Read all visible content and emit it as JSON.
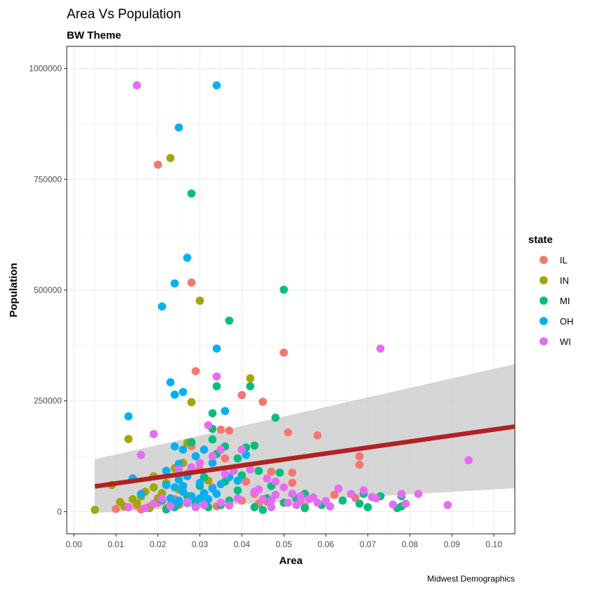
{
  "chart_data": {
    "type": "scatter",
    "title": "Area Vs Population",
    "subtitle": "BW Theme",
    "caption": "Midwest Demographics",
    "xlabel": "Area",
    "ylabel": "Population",
    "xlim": [
      -0.0017,
      0.105
    ],
    "ylim": [
      -50000,
      1050000
    ],
    "x_ticks": [
      0.0,
      0.01,
      0.02,
      0.03,
      0.04,
      0.05,
      0.06,
      0.07,
      0.08,
      0.09,
      0.1
    ],
    "x_tick_labels": [
      "0.00",
      "0.01",
      "0.02",
      "0.03",
      "0.04",
      "0.05",
      "0.06",
      "0.07",
      "0.08",
      "0.09",
      "0.10"
    ],
    "y_ticks": [
      0,
      250000,
      500000,
      750000,
      1000000
    ],
    "y_tick_labels": [
      "0",
      "250000",
      "500000",
      "750000",
      "1000000"
    ],
    "grid": true,
    "theme": "bw",
    "legend": {
      "title": "state",
      "position": "right",
      "entries": [
        {
          "label": "IL",
          "color": "#F8766D"
        },
        {
          "label": "IN",
          "color": "#A3A500"
        },
        {
          "label": "MI",
          "color": "#00BF7D"
        },
        {
          "label": "OH",
          "color": "#00B0F6"
        },
        {
          "label": "WI",
          "color": "#E76BF3"
        }
      ]
    },
    "smooth": {
      "method": "lm",
      "color": "#B22222",
      "band_color": "#C8C8C8",
      "x": [
        0.005,
        0.105
      ],
      "y": [
        57000,
        192000
      ],
      "band_lower": [
        -3000,
        53000
      ],
      "band_upper": [
        118000,
        333000
      ]
    },
    "series": [
      {
        "name": "IL",
        "points": [
          [
            0.02,
            783000
          ],
          [
            0.028,
            517000
          ],
          [
            0.05,
            359000
          ],
          [
            0.029,
            317000
          ],
          [
            0.04,
            263000
          ],
          [
            0.045,
            248000
          ],
          [
            0.051,
            179000
          ],
          [
            0.035,
            185000
          ],
          [
            0.037,
            183000
          ],
          [
            0.058,
            172000
          ],
          [
            0.068,
            125000
          ],
          [
            0.068,
            106000
          ],
          [
            0.028,
            148000
          ],
          [
            0.052,
            88000
          ],
          [
            0.047,
            90000
          ],
          [
            0.052,
            65000
          ],
          [
            0.044,
            18000
          ],
          [
            0.04,
            25000
          ],
          [
            0.067,
            31000
          ],
          [
            0.034,
            12000
          ],
          [
            0.027,
            22000
          ],
          [
            0.022,
            8000
          ],
          [
            0.016,
            5000
          ],
          [
            0.01,
            6000
          ],
          [
            0.013,
            10000
          ],
          [
            0.031,
            30000
          ],
          [
            0.025,
            15000
          ],
          [
            0.043,
            40000
          ],
          [
            0.053,
            30000
          ],
          [
            0.03,
            95000
          ],
          [
            0.036,
            120000
          ],
          [
            0.02,
            20000
          ],
          [
            0.046,
            22000
          ],
          [
            0.055,
            12000
          ],
          [
            0.024,
            28000
          ],
          [
            0.018,
            11000
          ],
          [
            0.062,
            38000
          ],
          [
            0.041,
            68000
          ],
          [
            0.033,
            55000
          ],
          [
            0.015,
            14000
          ]
        ]
      },
      {
        "name": "IN",
        "points": [
          [
            0.023,
            798000
          ],
          [
            0.03,
            476000
          ],
          [
            0.042,
            301000
          ],
          [
            0.028,
            247000
          ],
          [
            0.013,
            164000
          ],
          [
            0.027,
            155000
          ],
          [
            0.005,
            4000
          ],
          [
            0.011,
            22000
          ],
          [
            0.014,
            28000
          ],
          [
            0.017,
            45000
          ],
          [
            0.019,
            80000
          ],
          [
            0.022,
            65000
          ],
          [
            0.026,
            110000
          ],
          [
            0.029,
            125000
          ],
          [
            0.024,
            98000
          ],
          [
            0.016,
            34000
          ],
          [
            0.012,
            12000
          ],
          [
            0.02,
            30000
          ],
          [
            0.018,
            8000
          ],
          [
            0.021,
            42000
          ],
          [
            0.027,
            85000
          ],
          [
            0.009,
            60000
          ],
          [
            0.015,
            18000
          ],
          [
            0.032,
            70000
          ],
          [
            0.025,
            50000
          ],
          [
            0.023,
            15000
          ],
          [
            0.031,
            40000
          ],
          [
            0.019,
            55000
          ]
        ]
      },
      {
        "name": "MI",
        "points": [
          [
            0.028,
            718000
          ],
          [
            0.05,
            501000
          ],
          [
            0.037,
            431000
          ],
          [
            0.034,
            283000
          ],
          [
            0.042,
            283000
          ],
          [
            0.048,
            212000
          ],
          [
            0.033,
            222000
          ],
          [
            0.028,
            157000
          ],
          [
            0.033,
            187000
          ],
          [
            0.033,
            163000
          ],
          [
            0.036,
            147000
          ],
          [
            0.043,
            149000
          ],
          [
            0.041,
            145000
          ],
          [
            0.034,
            130000
          ],
          [
            0.039,
            120000
          ],
          [
            0.044,
            92000
          ],
          [
            0.049,
            88000
          ],
          [
            0.055,
            40000
          ],
          [
            0.059,
            15000
          ],
          [
            0.064,
            25000
          ],
          [
            0.068,
            18000
          ],
          [
            0.07,
            10000
          ],
          [
            0.073,
            35000
          ],
          [
            0.077,
            8000
          ],
          [
            0.078,
            12000
          ],
          [
            0.05,
            20000
          ],
          [
            0.055,
            8000
          ],
          [
            0.046,
            30000
          ],
          [
            0.043,
            10000
          ],
          [
            0.039,
            48000
          ],
          [
            0.036,
            68000
          ],
          [
            0.031,
            78000
          ],
          [
            0.03,
            58000
          ],
          [
            0.027,
            35000
          ],
          [
            0.025,
            20000
          ],
          [
            0.024,
            10000
          ],
          [
            0.022,
            5000
          ],
          [
            0.032,
            10000
          ],
          [
            0.037,
            25000
          ],
          [
            0.035,
            15000
          ],
          [
            0.047,
            58000
          ],
          [
            0.052,
            40000
          ],
          [
            0.069,
            40000
          ],
          [
            0.078,
            35000
          ],
          [
            0.04,
            82000
          ],
          [
            0.029,
            22000
          ],
          [
            0.045,
            4000
          ],
          [
            0.053,
            28000
          ]
        ]
      },
      {
        "name": "OH",
        "points": [
          [
            0.034,
            962000
          ],
          [
            0.025,
            867000
          ],
          [
            0.027,
            573000
          ],
          [
            0.024,
            515000
          ],
          [
            0.021,
            463000
          ],
          [
            0.034,
            368000
          ],
          [
            0.023,
            292000
          ],
          [
            0.024,
            264000
          ],
          [
            0.026,
            270000
          ],
          [
            0.036,
            227000
          ],
          [
            0.013,
            215000
          ],
          [
            0.024,
            147000
          ],
          [
            0.026,
            140000
          ],
          [
            0.029,
            125000
          ],
          [
            0.031,
            140000
          ],
          [
            0.033,
            110000
          ],
          [
            0.025,
            108000
          ],
          [
            0.028,
            100000
          ],
          [
            0.022,
            92000
          ],
          [
            0.027,
            80000
          ],
          [
            0.025,
            72000
          ],
          [
            0.03,
            65000
          ],
          [
            0.024,
            55000
          ],
          [
            0.026,
            45000
          ],
          [
            0.028,
            35000
          ],
          [
            0.023,
            30000
          ],
          [
            0.025,
            25000
          ],
          [
            0.027,
            20000
          ],
          [
            0.029,
            15000
          ],
          [
            0.031,
            42000
          ],
          [
            0.033,
            52000
          ],
          [
            0.035,
            62000
          ],
          [
            0.037,
            78000
          ],
          [
            0.039,
            70000
          ],
          [
            0.041,
            128000
          ],
          [
            0.014,
            75000
          ],
          [
            0.016,
            40000
          ],
          [
            0.022,
            60000
          ],
          [
            0.026,
            58000
          ],
          [
            0.03,
            30000
          ],
          [
            0.032,
            28000
          ],
          [
            0.024,
            18000
          ],
          [
            0.021,
            25000
          ],
          [
            0.034,
            40000
          ]
        ]
      },
      {
        "name": "WI",
        "points": [
          [
            0.015,
            962000
          ],
          [
            0.073,
            368000
          ],
          [
            0.034,
            305000
          ],
          [
            0.032,
            195000
          ],
          [
            0.019,
            175000
          ],
          [
            0.016,
            128000
          ],
          [
            0.04,
            140000
          ],
          [
            0.035,
            140000
          ],
          [
            0.033,
            125000
          ],
          [
            0.028,
            100000
          ],
          [
            0.025,
            95000
          ],
          [
            0.03,
            110000
          ],
          [
            0.042,
            95000
          ],
          [
            0.046,
            75000
          ],
          [
            0.048,
            68000
          ],
          [
            0.05,
            55000
          ],
          [
            0.052,
            40000
          ],
          [
            0.054,
            35000
          ],
          [
            0.056,
            28000
          ],
          [
            0.058,
            20000
          ],
          [
            0.063,
            52000
          ],
          [
            0.066,
            40000
          ],
          [
            0.069,
            48000
          ],
          [
            0.071,
            33000
          ],
          [
            0.072,
            30000
          ],
          [
            0.078,
            40000
          ],
          [
            0.082,
            40000
          ],
          [
            0.089,
            15000
          ],
          [
            0.094,
            116000
          ],
          [
            0.076,
            16000
          ],
          [
            0.079,
            18000
          ],
          [
            0.06,
            24000
          ],
          [
            0.061,
            12000
          ],
          [
            0.053,
            15000
          ],
          [
            0.051,
            20000
          ],
          [
            0.047,
            25000
          ],
          [
            0.045,
            28000
          ],
          [
            0.044,
            50000
          ],
          [
            0.043,
            45000
          ],
          [
            0.039,
            30000
          ],
          [
            0.037,
            14000
          ],
          [
            0.035,
            20000
          ],
          [
            0.031,
            15000
          ],
          [
            0.029,
            10000
          ],
          [
            0.027,
            22000
          ],
          [
            0.023,
            12000
          ],
          [
            0.021,
            30000
          ],
          [
            0.019,
            18000
          ],
          [
            0.017,
            8000
          ],
          [
            0.013,
            10000
          ],
          [
            0.047,
            10000
          ],
          [
            0.054,
            25000
          ],
          [
            0.057,
            32000
          ],
          [
            0.048,
            38000
          ],
          [
            0.036,
            85000
          ],
          [
            0.038,
            92000
          ]
        ]
      }
    ]
  }
}
